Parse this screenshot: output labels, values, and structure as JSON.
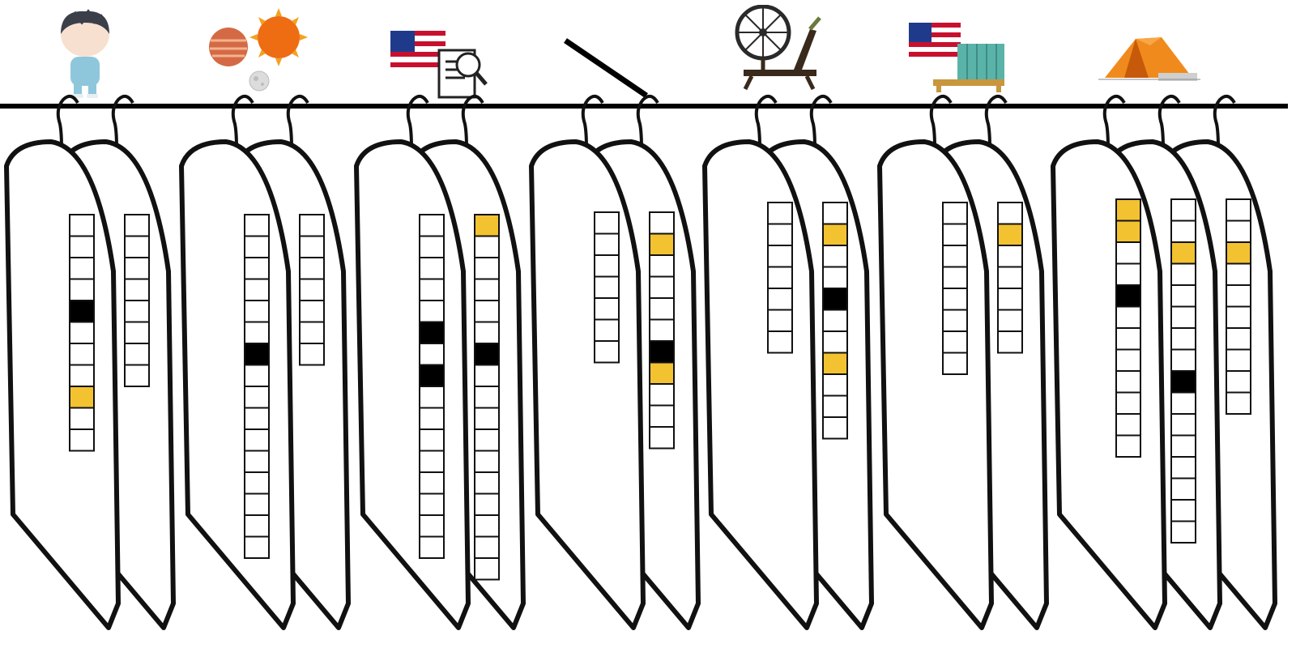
{
  "puzzle": {
    "title": "",
    "colors": {
      "filled": "#000000",
      "highlight": "#f2c230",
      "empty": "#ffffff",
      "bag_outline": "#111111"
    },
    "clues": [
      {
        "icon": "boy-icon",
        "words": [
          {
            "length": 11,
            "cells": {
              "4": "black",
              "8": "yellow"
            }
          },
          {
            "length": 8,
            "cells": {}
          }
        ]
      },
      {
        "icon": "planets-icon",
        "words": [
          {
            "length": 16,
            "cells": {
              "6": "black"
            }
          },
          {
            "length": 7,
            "cells": {}
          }
        ]
      },
      {
        "icon": "usa-flag-document-icon",
        "words": [
          {
            "length": 16,
            "cells": {
              "5": "black",
              "7": "black"
            }
          },
          {
            "length": 17,
            "cells": {
              "0": "yellow",
              "6": "black"
            }
          }
        ]
      },
      {
        "icon": "diagonal-line-icon",
        "words": [
          {
            "length": 7,
            "cells": {}
          },
          {
            "length": 11,
            "cells": {
              "1": "yellow",
              "6": "black",
              "7": "yellow"
            }
          }
        ]
      },
      {
        "icon": "spinning-wheel-icon",
        "words": [
          {
            "length": 7,
            "cells": {}
          },
          {
            "length": 11,
            "cells": {
              "1": "yellow",
              "4": "black",
              "7": "yellow"
            }
          }
        ]
      },
      {
        "icon": "usa-flag-bookshelf-icon",
        "words": [
          {
            "length": 8,
            "cells": {}
          },
          {
            "length": 7,
            "cells": {
              "1": "yellow"
            }
          }
        ]
      },
      {
        "icon": "tent-icon",
        "words": [
          {
            "length": 12,
            "cells": {
              "0": "yellow",
              "1": "yellow",
              "4": "black"
            }
          },
          {
            "length": 16,
            "cells": {
              "2": "yellow",
              "8": "black"
            }
          },
          {
            "length": 10,
            "cells": {
              "2": "yellow"
            }
          }
        ]
      }
    ]
  }
}
